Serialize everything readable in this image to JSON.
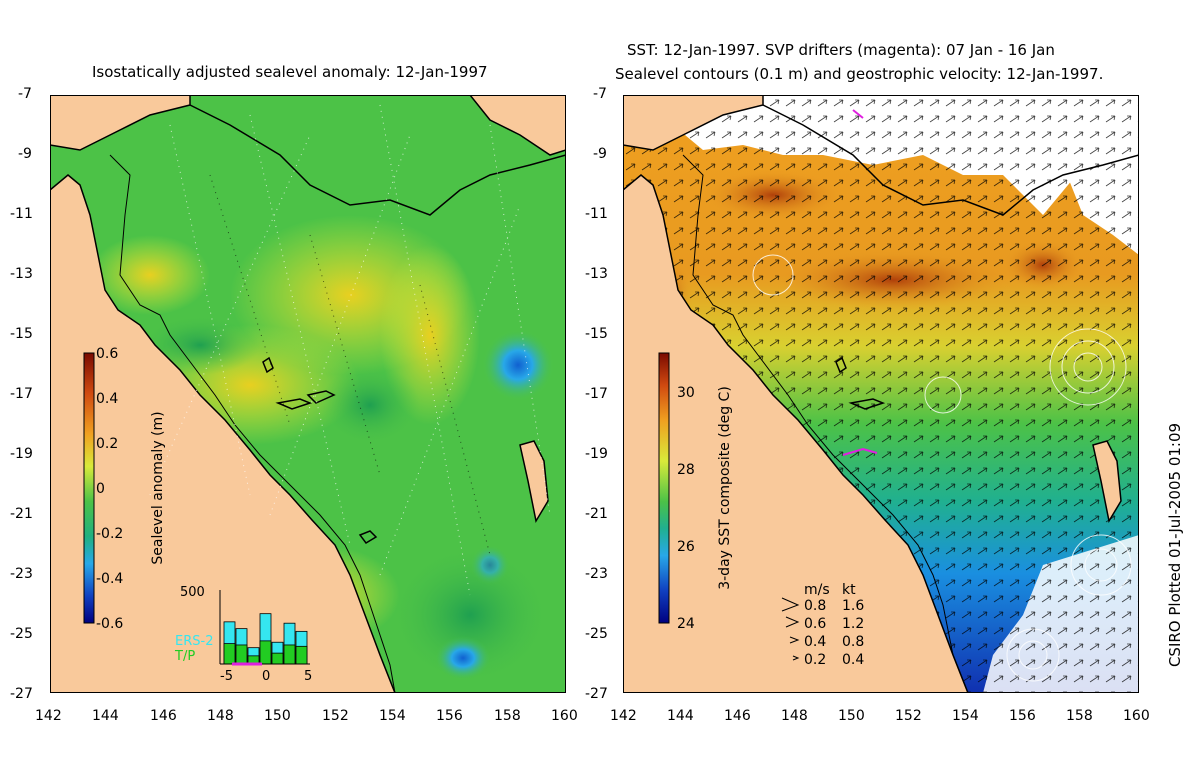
{
  "left_panel": {
    "title": "Isostatically adjusted sealevel anomaly: 12-Jan-1997",
    "colorbar": {
      "label": "Sealevel anomaly (m)",
      "ticks": [
        "0.6",
        "0.4",
        "0.2",
        "0",
        "-0.2",
        "-0.4",
        "-0.6"
      ],
      "range": [
        -0.6,
        0.6
      ]
    },
    "histogram": {
      "ymax_label": "500",
      "x_ticks": [
        "-5",
        "0",
        "5"
      ],
      "legend": [
        "ERS-2",
        "T/P"
      ],
      "ers2_color": "#35e6f0",
      "tp_color": "#22cc22",
      "ers2_counts": [
        310,
        260,
        120,
        370,
        160,
        300,
        240
      ],
      "tp_counts": [
        150,
        140,
        60,
        170,
        80,
        140,
        130
      ]
    }
  },
  "right_panel": {
    "title_line1": "SST: 12-Jan-1997. SVP drifters (magenta): 07 Jan - 16 Jan",
    "title_line2": "Sealevel contours (0.1 m) and geostrophic velocity: 12-Jan-1997.",
    "colorbar": {
      "label": "3-day SST composite (deg C)",
      "ticks": [
        "30",
        "28",
        "26",
        "24"
      ],
      "range": [
        24,
        31
      ]
    },
    "velocity_legend": {
      "header_ms": "m/s",
      "header_kt": "kt",
      "rows": [
        {
          "ms": "0.8",
          "kt": "1.6"
        },
        {
          "ms": "0.6",
          "kt": "1.2"
        },
        {
          "ms": "0.4",
          "kt": "0.8"
        },
        {
          "ms": "0.2",
          "kt": "0.4"
        }
      ]
    }
  },
  "axes": {
    "lat_ticks": [
      "-7",
      "-9",
      "-11",
      "-13",
      "-15",
      "-17",
      "-19",
      "-21",
      "-23",
      "-25",
      "-27"
    ],
    "lon_ticks": [
      "142",
      "144",
      "146",
      "148",
      "150",
      "152",
      "154",
      "156",
      "158",
      "160"
    ],
    "lat_range": [
      -27,
      -7
    ],
    "lon_range": [
      142,
      160
    ]
  },
  "credit": "CSIRO Plotted 01-Jul-2005 01:09",
  "colors": {
    "land": "#f9c99b",
    "ocean_green": "#4cc247",
    "ocean_yellow": "#d9ea3a",
    "sst_orange": "#f0a020",
    "sst_blue": "#1a8fe0"
  }
}
